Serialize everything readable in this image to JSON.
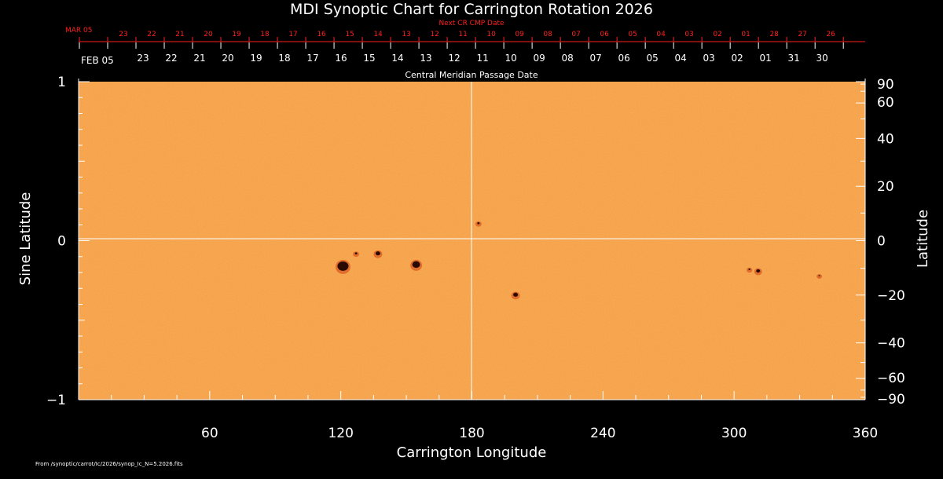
{
  "chart_data": {
    "type": "heatmap",
    "title": "MDI Synoptic Chart for Carrington Rotation 2026",
    "xlabel": "Carrington Longitude",
    "ylabel_left": "Sine Latitude",
    "ylabel_right": "Latitude",
    "xlim": [
      0,
      360
    ],
    "ylim": [
      -1,
      1
    ],
    "x_ticks": [
      "60",
      "120",
      "180",
      "240",
      "300",
      "360"
    ],
    "x_tick_values": [
      60,
      120,
      180,
      240,
      300,
      360
    ],
    "y_left_ticks": [
      "1",
      "0",
      "−1"
    ],
    "y_left_tick_values": [
      1,
      0,
      -1
    ],
    "y_right_ticks": [
      "90",
      "60",
      "40",
      "20",
      "0",
      "−20",
      "−40",
      "−60",
      "−90"
    ],
    "y_right_tick_values": [
      90,
      60,
      40,
      20,
      0,
      -20,
      -40,
      -60,
      -90
    ],
    "next_cr_label": "Next CR CMP Date",
    "next_cr_start": "MAR 05",
    "next_cr_dates": [
      "23",
      "22",
      "21",
      "20",
      "19",
      "18",
      "17",
      "16",
      "15",
      "14",
      "13",
      "12",
      "11",
      "10",
      "09",
      "08",
      "07",
      "06",
      "05",
      "04",
      "03",
      "02",
      "01",
      "28",
      "27",
      "26"
    ],
    "cmp_label": "Central Meridian Passage Date",
    "cmp_start": "FEB 05",
    "cmp_dates": [
      "23",
      "22",
      "21",
      "20",
      "19",
      "18",
      "17",
      "16",
      "15",
      "14",
      "13",
      "12",
      "11",
      "10",
      "09",
      "08",
      "07",
      "06",
      "05",
      "04",
      "03",
      "02",
      "01",
      "31",
      "30"
    ],
    "grid": "lines at longitude 180 and sine latitude 0",
    "colors": {
      "background": "#000000",
      "map": "#f5a04a",
      "spots": "#2a0a00",
      "red_axis": "#ff2020",
      "grid": "#ffffff"
    },
    "spots": [
      {
        "lon": 121,
        "sinlat": -0.16,
        "size": 7
      },
      {
        "lon": 127,
        "sinlat": -0.08,
        "size": 1.5
      },
      {
        "lon": 137,
        "sinlat": -0.08,
        "size": 3
      },
      {
        "lon": 154.5,
        "sinlat": -0.15,
        "size": 5
      },
      {
        "lon": 183,
        "sinlat": 0.11,
        "size": 1.5
      },
      {
        "lon": 200,
        "sinlat": -0.34,
        "size": 3
      },
      {
        "lon": 311,
        "sinlat": -0.19,
        "size": 2.5
      },
      {
        "lon": 307,
        "sinlat": -0.18,
        "size": 1.2
      },
      {
        "lon": 339,
        "sinlat": -0.22,
        "size": 1
      }
    ]
  },
  "footer_text": "From /synoptic/carrot/Ic/2026/synop_Ic_N=5.2026.fits"
}
